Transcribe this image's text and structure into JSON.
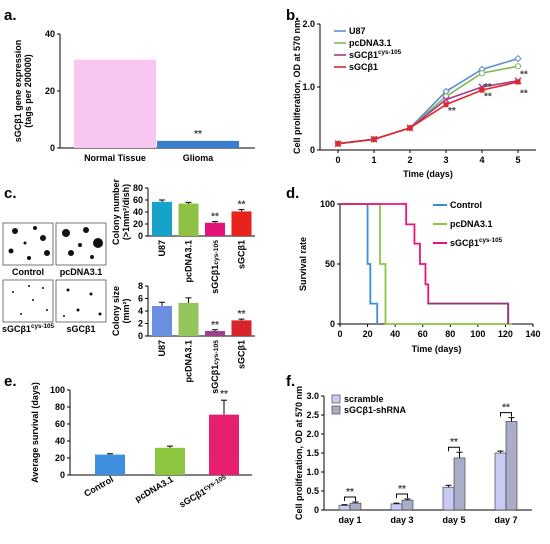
{
  "figure": {
    "panel_labels": [
      "a.",
      "b.",
      "c.",
      "d.",
      "e.",
      "f."
    ]
  },
  "chart_data": [
    {
      "id": "a",
      "type": "bar",
      "categories": [
        "Normal Tissue",
        "Glioma"
      ],
      "values": [
        31,
        2.5
      ],
      "colors": [
        "#f9c6f1",
        "#3a7fcf"
      ],
      "ylabel": "sGCβ1 gene expression (tags per 200000)",
      "ylabel_lines": [
        "sGCβ1 gene expression",
        "(tags per 200000)"
      ],
      "ylim": [
        0,
        40
      ],
      "yticks": [
        0,
        20,
        40
      ],
      "annotations": [
        {
          "category": "Glioma",
          "text": "**"
        }
      ]
    },
    {
      "id": "b",
      "type": "line",
      "x": [
        0,
        1,
        2,
        3,
        4,
        5
      ],
      "xlabel": "Time (days)",
      "ylabel": "Cell proliferation, OD at 570 nm",
      "xlim": [
        -0.5,
        5.5
      ],
      "ylim": [
        0,
        2.0
      ],
      "xticks": [
        0,
        1,
        2,
        3,
        4,
        5
      ],
      "yticks": [
        0,
        1.0,
        2.0
      ],
      "ytick_labels": [
        "0",
        "1.0",
        "2.0"
      ],
      "series": [
        {
          "name": "U87",
          "values": [
            0.1,
            0.17,
            0.35,
            0.93,
            1.28,
            1.45
          ],
          "color": "#5b8fd0",
          "marker": "diamond"
        },
        {
          "name": "pcDNA3.1",
          "values": [
            0.1,
            0.17,
            0.35,
            0.85,
            1.22,
            1.33
          ],
          "color": "#7fb75a",
          "marker": "circle"
        },
        {
          "name": "sGCβ1",
          "sup": "cys-105",
          "values": [
            0.1,
            0.17,
            0.35,
            0.8,
            1.0,
            1.1
          ],
          "color": "#a63a8f",
          "marker": "x"
        },
        {
          "name": "sGCβ1",
          "values": [
            0.1,
            0.17,
            0.35,
            0.72,
            0.95,
            1.08
          ],
          "color": "#e0282c",
          "marker": "square"
        }
      ],
      "annotations": [
        {
          "x": 3,
          "y": 0.62,
          "text": "**"
        },
        {
          "x": 4,
          "y": 0.85,
          "text": "**"
        },
        {
          "x": 4,
          "y": 1.0,
          "text": "**"
        },
        {
          "x": 5,
          "y": 0.9,
          "text": "**"
        },
        {
          "x": 5,
          "y": 1.2,
          "text": "**"
        }
      ]
    },
    {
      "id": "c_number",
      "type": "bar",
      "categories": [
        "U87",
        "pcDNA3.1",
        "sGCβ1cys-105",
        "sGCβ1"
      ],
      "category_labels": [
        "U87",
        "pcDNA3.1",
        "sGCβ1",
        "sGCβ1"
      ],
      "category_sups": [
        "",
        "",
        "cys-105",
        ""
      ],
      "values": [
        57,
        54,
        22,
        41
      ],
      "errors": [
        3,
        2,
        2,
        3
      ],
      "colors": [
        "#17a3c9",
        "#8dc043",
        "#e3137a",
        "#e8231d"
      ],
      "ylabel": "Colony number (>1mm²/dish)",
      "ylabel_lines": [
        "Colony number",
        "(>1mm²/dish)"
      ],
      "ylim": [
        0,
        80
      ],
      "yticks": [
        0,
        20,
        40,
        60,
        80
      ],
      "annotations": [
        {
          "category": 2,
          "text": "**"
        },
        {
          "category": 3,
          "text": "**"
        }
      ]
    },
    {
      "id": "c_size",
      "type": "bar",
      "categories": [
        "U87",
        "pcDNA3.1",
        "sGCβ1cys-105",
        "sGCβ1"
      ],
      "category_labels": [
        "U87",
        "pcDNA3.1",
        "sGCβ1",
        "sGCβ1"
      ],
      "category_sups": [
        "",
        "",
        "cys-105",
        ""
      ],
      "values": [
        4.8,
        5.3,
        0.8,
        2.5
      ],
      "errors": [
        0.6,
        0.8,
        0.2,
        0.2
      ],
      "colors": [
        "#6b8fe0",
        "#93c65a",
        "#a13f8b",
        "#d8252c"
      ],
      "ylabel": "Colony size (mm²)",
      "ylabel_lines": [
        "Colony size",
        "(mm²)"
      ],
      "ylim": [
        0,
        8
      ],
      "yticks": [
        0,
        2,
        4,
        6,
        8
      ],
      "annotations": [
        {
          "category": 2,
          "text": "**"
        },
        {
          "category": 3,
          "text": "**"
        }
      ]
    },
    {
      "id": "d",
      "type": "line",
      "step": true,
      "xlabel": "Time (days)",
      "ylabel": "Survival rate",
      "xlim": [
        0,
        140
      ],
      "ylim": [
        0,
        100
      ],
      "xticks": [
        0,
        20,
        40,
        60,
        80,
        100,
        120,
        140
      ],
      "yticks": [
        0,
        50,
        100
      ],
      "series": [
        {
          "name": "Control",
          "color": "#3a8fdc",
          "points": [
            [
              0,
              100
            ],
            [
              20,
              100
            ],
            [
              20,
              50
            ],
            [
              22,
              50
            ],
            [
              22,
              17
            ],
            [
              27,
              17
            ],
            [
              27,
              0
            ]
          ]
        },
        {
          "name": "pcDNA3.1",
          "color": "#8cc63f",
          "points": [
            [
              0,
              100
            ],
            [
              29,
              100
            ],
            [
              29,
              50
            ],
            [
              33,
              50
            ],
            [
              33,
              0
            ],
            [
              125,
              0
            ]
          ]
        },
        {
          "name": "sGCβ1",
          "sup": "cys-105",
          "color": "#e8157c",
          "points": [
            [
              0,
              100
            ],
            [
              48,
              100
            ],
            [
              48,
              83
            ],
            [
              54,
              83
            ],
            [
              54,
              67
            ],
            [
              58,
              67
            ],
            [
              58,
              50
            ],
            [
              62,
              50
            ],
            [
              62,
              33
            ],
            [
              64,
              33
            ],
            [
              64,
              17
            ],
            [
              122,
              17
            ],
            [
              122,
              0
            ]
          ]
        },
        {
          "name": "",
          "color": "#8a3a7a",
          "points": [
            [
              64,
              17
            ],
            [
              122,
              17
            ],
            [
              122,
              0
            ]
          ]
        }
      ]
    },
    {
      "id": "e",
      "type": "bar",
      "categories": [
        "Control",
        "pcDNA3.1",
        "sGCβ1cys-105"
      ],
      "category_labels": [
        "Control",
        "pcDNA3.1",
        "sGCβ1"
      ],
      "category_sups": [
        "",
        "",
        "cys-105"
      ],
      "values": [
        24,
        32,
        71
      ],
      "errors": [
        1,
        2,
        17
      ],
      "colors": [
        "#3f8fe0",
        "#8cc63f",
        "#e81e6e"
      ],
      "ylabel": "Average survival (days)",
      "ylim": [
        0,
        100
      ],
      "yticks": [
        0,
        20,
        40,
        60,
        80,
        100
      ],
      "annotations": [
        {
          "category": 2,
          "text": "**"
        }
      ]
    },
    {
      "id": "f",
      "type": "bar",
      "categories": [
        "day 1",
        "day 3",
        "day 5",
        "day 7"
      ],
      "ylabel": "Cell proliferation, OD at 570 nm",
      "ylim": [
        0,
        3.0
      ],
      "yticks": [
        0,
        0.5,
        1.0,
        1.5,
        2.0,
        2.5,
        3.0
      ],
      "ytick_labels": [
        "0",
        "0.5",
        "1.0",
        "1.5",
        "2.0",
        "2.5",
        "3.0"
      ],
      "series": [
        {
          "name": "scramble",
          "values": [
            0.12,
            0.16,
            0.6,
            1.5
          ],
          "errors": [
            0.02,
            0.02,
            0.05,
            0.05
          ],
          "color": "#c8ccf4"
        },
        {
          "name": "sGCβ1-shRNA",
          "values": [
            0.18,
            0.26,
            1.37,
            2.33
          ],
          "errors": [
            0.03,
            0.03,
            0.15,
            0.1
          ],
          "color": "#a9adc7"
        }
      ],
      "annotations": [
        {
          "category": 0,
          "text": "**"
        },
        {
          "category": 1,
          "text": "**"
        },
        {
          "category": 2,
          "text": "**"
        },
        {
          "category": 3,
          "text": "**"
        }
      ]
    }
  ],
  "colony_images": [
    {
      "caption": "Control",
      "sup": ""
    },
    {
      "caption": "pcDNA3.1",
      "sup": ""
    },
    {
      "caption": "sGCβ1",
      "sup": "cys-105"
    },
    {
      "caption": "sGCβ1",
      "sup": ""
    }
  ]
}
